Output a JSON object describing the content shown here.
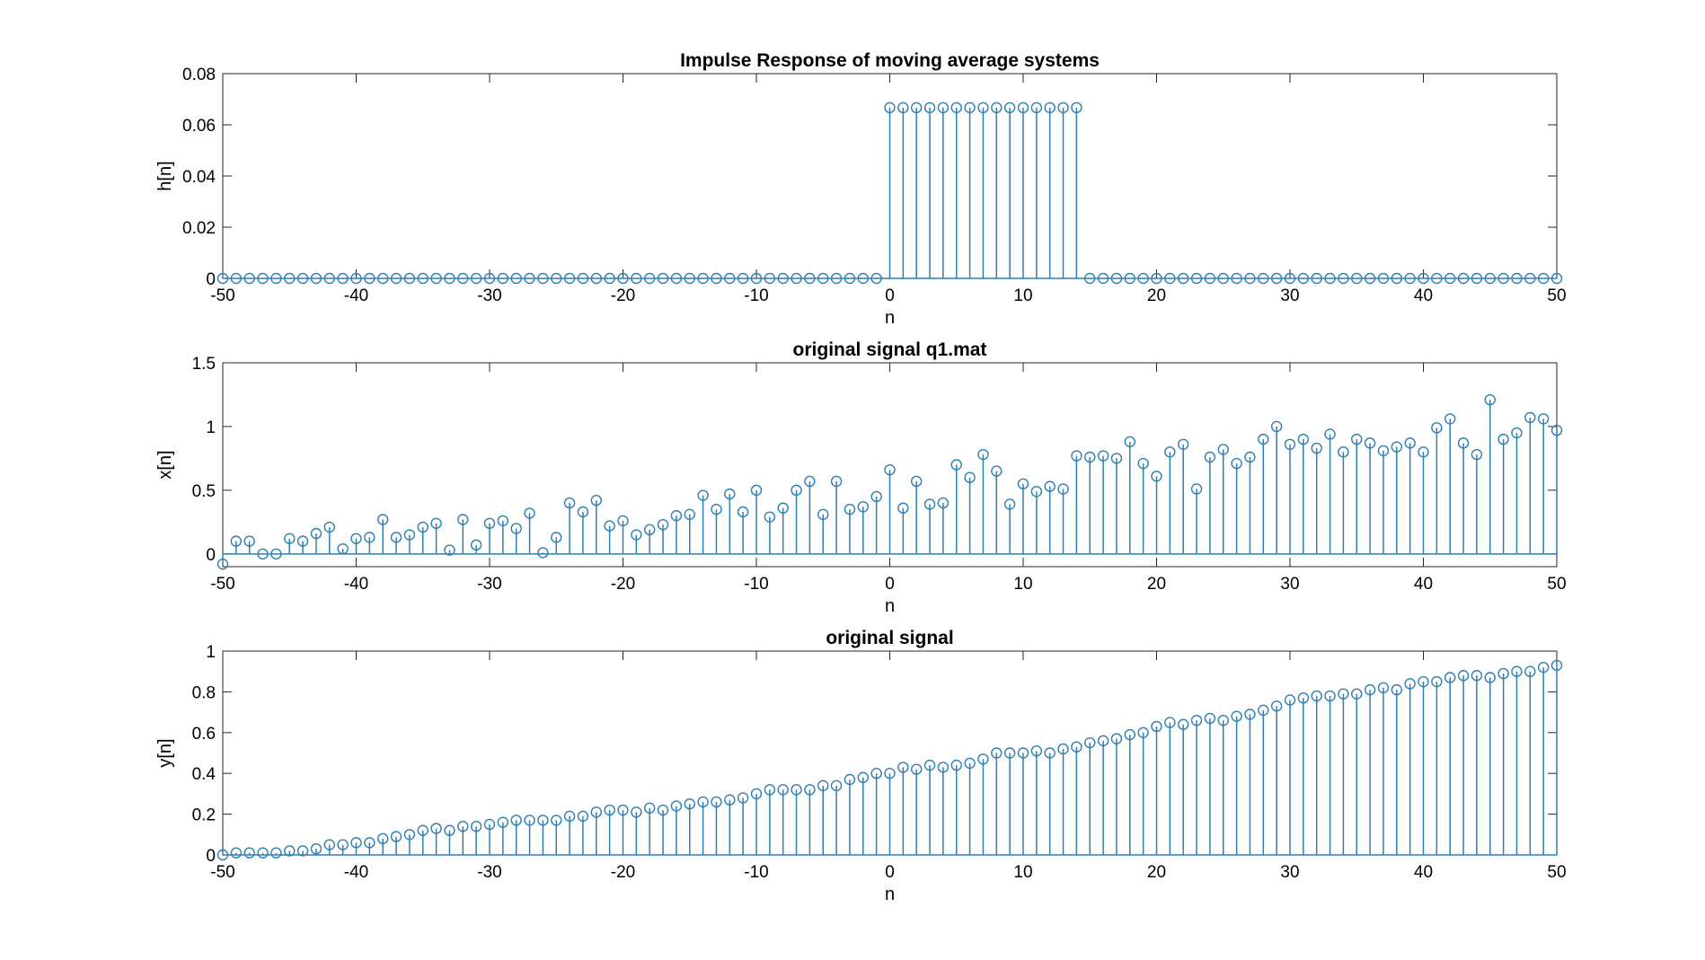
{
  "colors": {
    "stem": "#2f7fb2",
    "axis": "#262626",
    "background": "#ffffff"
  },
  "chart_data": [
    {
      "type": "stem",
      "title": "Impulse Response of moving average systems",
      "xlabel": "n",
      "ylabel": "h[n]",
      "xlim": [
        -50,
        50
      ],
      "ylim": [
        0,
        0.08
      ],
      "xticks": [
        -50,
        -40,
        -30,
        -20,
        -10,
        0,
        10,
        20,
        30,
        40,
        50
      ],
      "yticks": [
        0,
        0.02,
        0.04,
        0.06,
        0.08
      ],
      "xtick_labels": [
        "-50",
        "-40",
        "-30",
        "-20",
        "-10",
        "0",
        "10",
        "20",
        "30",
        "40",
        "50"
      ],
      "ytick_labels": [
        "0",
        "0.02",
        "0.04",
        "0.06",
        "0.08"
      ],
      "x_start": -50,
      "values": [
        0,
        0,
        0,
        0,
        0,
        0,
        0,
        0,
        0,
        0,
        0,
        0,
        0,
        0,
        0,
        0,
        0,
        0,
        0,
        0,
        0,
        0,
        0,
        0,
        0,
        0,
        0,
        0,
        0,
        0,
        0,
        0,
        0,
        0,
        0,
        0,
        0,
        0,
        0,
        0,
        0,
        0,
        0,
        0,
        0,
        0,
        0,
        0,
        0,
        0,
        0.0667,
        0.0667,
        0.0667,
        0.0667,
        0.0667,
        0.0667,
        0.0667,
        0.0667,
        0.0667,
        0.0667,
        0.0667,
        0.0667,
        0.0667,
        0.0667,
        0.0667,
        0,
        0,
        0,
        0,
        0,
        0,
        0,
        0,
        0,
        0,
        0,
        0,
        0,
        0,
        0,
        0,
        0,
        0,
        0,
        0,
        0,
        0,
        0,
        0,
        0,
        0,
        0,
        0,
        0,
        0,
        0,
        0,
        0,
        0,
        0,
        0
      ]
    },
    {
      "type": "stem",
      "title": "original signal q1.mat",
      "xlabel": "n",
      "ylabel": "x[n]",
      "xlim": [
        -50,
        50
      ],
      "ylim": [
        -0.1,
        1.5
      ],
      "xticks": [
        -50,
        -40,
        -30,
        -20,
        -10,
        0,
        10,
        20,
        30,
        40,
        50
      ],
      "yticks": [
        0,
        0.5,
        1,
        1.5
      ],
      "xtick_labels": [
        "-50",
        "-40",
        "-30",
        "-20",
        "-10",
        "0",
        "10",
        "20",
        "30",
        "40",
        "50"
      ],
      "ytick_labels": [
        "0",
        "0.5",
        "1",
        "1.5"
      ],
      "x_start": -50,
      "values": [
        -0.08,
        0.1,
        0.1,
        0.0,
        0.0,
        0.12,
        0.1,
        0.16,
        0.21,
        0.04,
        0.12,
        0.13,
        0.27,
        0.13,
        0.15,
        0.21,
        0.24,
        0.03,
        0.27,
        0.07,
        0.24,
        0.26,
        0.2,
        0.32,
        0.01,
        0.13,
        0.4,
        0.33,
        0.42,
        0.22,
        0.26,
        0.15,
        0.19,
        0.23,
        0.3,
        0.31,
        0.46,
        0.35,
        0.47,
        0.33,
        0.5,
        0.29,
        0.36,
        0.5,
        0.57,
        0.31,
        0.57,
        0.35,
        0.37,
        0.45,
        0.66,
        0.36,
        0.57,
        0.39,
        0.4,
        0.7,
        0.6,
        0.78,
        0.65,
        0.39,
        0.55,
        0.49,
        0.53,
        0.51,
        0.77,
        0.76,
        0.77,
        0.75,
        0.88,
        0.71,
        0.61,
        0.8,
        0.86,
        0.51,
        0.76,
        0.82,
        0.71,
        0.76,
        0.9,
        1.0,
        0.86,
        0.9,
        0.83,
        0.94,
        0.8,
        0.9,
        0.87,
        0.81,
        0.84,
        0.87,
        0.8,
        0.99,
        1.06,
        0.87,
        0.78,
        1.21,
        0.9,
        0.95,
        1.07,
        1.06,
        0.97
      ]
    },
    {
      "type": "stem",
      "title": "original signal",
      "xlabel": "n",
      "ylabel": "y[n]",
      "xlim": [
        -50,
        50
      ],
      "ylim": [
        0,
        1
      ],
      "xticks": [
        -50,
        -40,
        -30,
        -20,
        -10,
        0,
        10,
        20,
        30,
        40,
        50
      ],
      "yticks": [
        0,
        0.2,
        0.4,
        0.6,
        0.8,
        1
      ],
      "xtick_labels": [
        "-50",
        "-40",
        "-30",
        "-20",
        "-10",
        "0",
        "10",
        "20",
        "30",
        "40",
        "50"
      ],
      "ytick_labels": [
        "0",
        "0.2",
        "0.4",
        "0.6",
        "0.8",
        "1"
      ],
      "x_start": -50,
      "values": [
        0.0,
        0.01,
        0.01,
        0.01,
        0.01,
        0.02,
        0.02,
        0.03,
        0.05,
        0.05,
        0.06,
        0.06,
        0.08,
        0.09,
        0.1,
        0.12,
        0.13,
        0.12,
        0.14,
        0.14,
        0.15,
        0.16,
        0.17,
        0.17,
        0.17,
        0.17,
        0.19,
        0.19,
        0.21,
        0.22,
        0.22,
        0.21,
        0.23,
        0.22,
        0.24,
        0.25,
        0.26,
        0.26,
        0.27,
        0.28,
        0.3,
        0.32,
        0.32,
        0.32,
        0.32,
        0.34,
        0.34,
        0.37,
        0.38,
        0.4,
        0.4,
        0.43,
        0.42,
        0.44,
        0.43,
        0.44,
        0.45,
        0.47,
        0.5,
        0.5,
        0.5,
        0.51,
        0.5,
        0.52,
        0.53,
        0.55,
        0.56,
        0.57,
        0.59,
        0.6,
        0.63,
        0.65,
        0.64,
        0.66,
        0.67,
        0.66,
        0.68,
        0.69,
        0.71,
        0.73,
        0.76,
        0.77,
        0.78,
        0.78,
        0.79,
        0.79,
        0.81,
        0.82,
        0.81,
        0.84,
        0.85,
        0.85,
        0.87,
        0.88,
        0.88,
        0.87,
        0.89,
        0.9,
        0.9,
        0.92,
        0.93
      ]
    }
  ]
}
